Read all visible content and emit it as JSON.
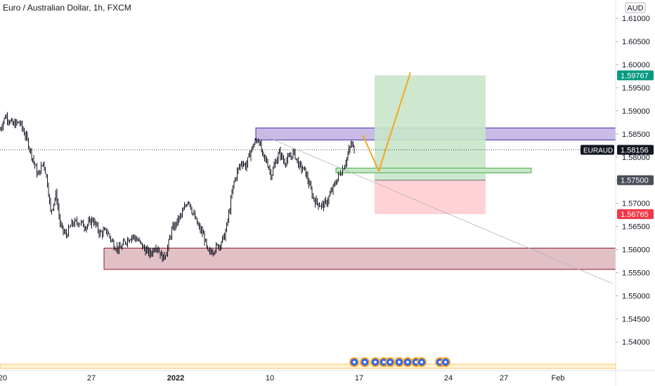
{
  "chart_data": {
    "type": "candlestick",
    "title": "Euro / Australian Dollar, 1h, FXCM",
    "symbol": "EURAUD",
    "currency": "AUD",
    "y_ticks": [
      {
        "value": 1.54,
        "label": "1.54000"
      },
      {
        "value": 1.545,
        "label": "1.54500"
      },
      {
        "value": 1.55,
        "label": "1.55000"
      },
      {
        "value": 1.555,
        "label": "1.55500"
      },
      {
        "value": 1.56,
        "label": "1.56000"
      },
      {
        "value": 1.565,
        "label": "1.56500"
      },
      {
        "value": 1.57,
        "label": "1.57000"
      },
      {
        "value": 1.575,
        "label": "1.57500"
      },
      {
        "value": 1.58,
        "label": "1.58000"
      },
      {
        "value": 1.585,
        "label": "1.58500"
      },
      {
        "value": 1.59,
        "label": "1.59000"
      },
      {
        "value": 1.595,
        "label": "1.59500"
      },
      {
        "value": 1.6,
        "label": "1.60000"
      },
      {
        "value": 1.605,
        "label": "1.60500"
      },
      {
        "value": 1.61,
        "label": "1.61000"
      }
    ],
    "x_ticks": [
      "20",
      "27",
      "2022",
      "10",
      "17",
      "24",
      "27",
      "Feb"
    ],
    "price_tags": [
      {
        "label": "1.59767",
        "value": 1.59767,
        "color": "#089981"
      },
      {
        "label": "1.58156",
        "value": 1.58156,
        "color": "#131722"
      },
      {
        "label": "1.57500",
        "value": 1.575,
        "color": "#4a4e59"
      },
      {
        "label": "1.56765",
        "value": 1.56765,
        "color": "#f23645"
      }
    ],
    "ylim": [
      1.537,
      1.612
    ],
    "price_path": [
      [
        0,
        1.586
      ],
      [
        8,
        1.589
      ],
      [
        18,
        1.587
      ],
      [
        28,
        1.5875
      ],
      [
        38,
        1.584
      ],
      [
        46,
        1.58
      ],
      [
        54,
        1.576
      ],
      [
        62,
        1.579
      ],
      [
        68,
        1.574
      ],
      [
        72,
        1.568
      ],
      [
        80,
        1.572
      ],
      [
        86,
        1.565
      ],
      [
        94,
        1.563
      ],
      [
        102,
        1.5655
      ],
      [
        112,
        1.566
      ],
      [
        122,
        1.565
      ],
      [
        132,
        1.5665
      ],
      [
        142,
        1.5635
      ],
      [
        152,
        1.564
      ],
      [
        162,
        1.561
      ],
      [
        170,
        1.56
      ],
      [
        180,
        1.562
      ],
      [
        188,
        1.563
      ],
      [
        196,
        1.562
      ],
      [
        206,
        1.56
      ],
      [
        214,
        1.559
      ],
      [
        222,
        1.561
      ],
      [
        232,
        1.558
      ],
      [
        238,
        1.56
      ],
      [
        244,
        1.564
      ],
      [
        252,
        1.566
      ],
      [
        260,
        1.568
      ],
      [
        268,
        1.571
      ],
      [
        274,
        1.568
      ],
      [
        282,
        1.565
      ],
      [
        290,
        1.563
      ],
      [
        296,
        1.559
      ],
      [
        304,
        1.56
      ],
      [
        312,
        1.561
      ],
      [
        320,
        1.563
      ],
      [
        326,
        1.568
      ],
      [
        332,
        1.574
      ],
      [
        338,
        1.577
      ],
      [
        344,
        1.579
      ],
      [
        350,
        1.578
      ],
      [
        356,
        1.581
      ],
      [
        362,
        1.583
      ],
      [
        368,
        1.584
      ],
      [
        374,
        1.58
      ],
      [
        380,
        1.579
      ],
      [
        386,
        1.576
      ],
      [
        392,
        1.579
      ],
      [
        398,
        1.581
      ],
      [
        404,
        1.579
      ],
      [
        410,
        1.5795
      ],
      [
        418,
        1.581
      ],
      [
        426,
        1.578
      ],
      [
        434,
        1.577
      ],
      [
        440,
        1.574
      ],
      [
        446,
        1.571
      ],
      [
        452,
        1.57
      ],
      [
        458,
        1.5695
      ],
      [
        464,
        1.57
      ],
      [
        470,
        1.572
      ],
      [
        476,
        1.574
      ],
      [
        482,
        1.576
      ],
      [
        488,
        1.5775
      ],
      [
        494,
        1.58
      ],
      [
        500,
        1.583
      ],
      [
        504,
        1.5816
      ]
    ],
    "zones": [
      {
        "name": "resistance",
        "price_top": 1.5863,
        "price_bottom": 1.5837,
        "x_start": 364,
        "x_end": 876,
        "color": "#b39ddb"
      },
      {
        "name": "support",
        "price_top": 1.5603,
        "price_bottom": 1.5557,
        "x_start": 148,
        "x_end": 876,
        "color": "#d4a5ae"
      },
      {
        "name": "retest",
        "price_top": 1.5776,
        "price_bottom": 1.5766,
        "x_start": 478,
        "x_end": 756,
        "color": "#c8e6c9"
      }
    ],
    "position": {
      "entry": 1.575,
      "target": 1.59767,
      "stop": 1.56765,
      "x_start": 533,
      "x_end": 691
    },
    "projection": [
      [
        516,
        1.5848
      ],
      [
        539,
        1.577
      ],
      [
        584,
        1.5983
      ]
    ],
    "trendline": [
      [
        370,
        1.585
      ],
      [
        872,
        1.5526
      ]
    ]
  }
}
